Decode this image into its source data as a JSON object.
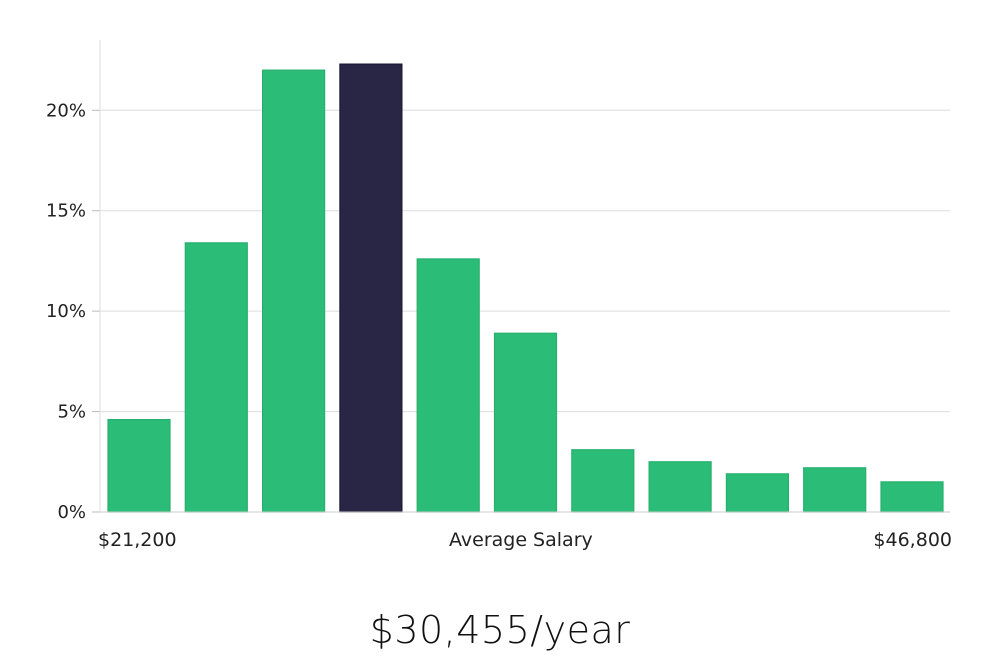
{
  "chart_data": {
    "type": "bar",
    "categories": [
      "1",
      "2",
      "3",
      "4",
      "5",
      "6",
      "7",
      "8",
      "9",
      "10",
      "11"
    ],
    "values": [
      4.6,
      13.4,
      22.0,
      22.3,
      12.6,
      8.9,
      3.1,
      2.5,
      1.9,
      2.2,
      1.5
    ],
    "highlight_index": 3,
    "ylim": [
      0,
      23.5
    ],
    "y_ticks": [
      0,
      5,
      10,
      15,
      20
    ],
    "y_tick_labels": [
      "0%",
      "5%",
      "10%",
      "15%",
      "20%"
    ],
    "grid": true,
    "colors": {
      "bar": "#2bbd77",
      "highlight": "#292545",
      "grid": "#dddddd"
    }
  },
  "x_axis": {
    "min_label": "$21,200",
    "center_label": "Average Salary",
    "max_label": "$46,800"
  },
  "average_salary": "$30,455/year"
}
